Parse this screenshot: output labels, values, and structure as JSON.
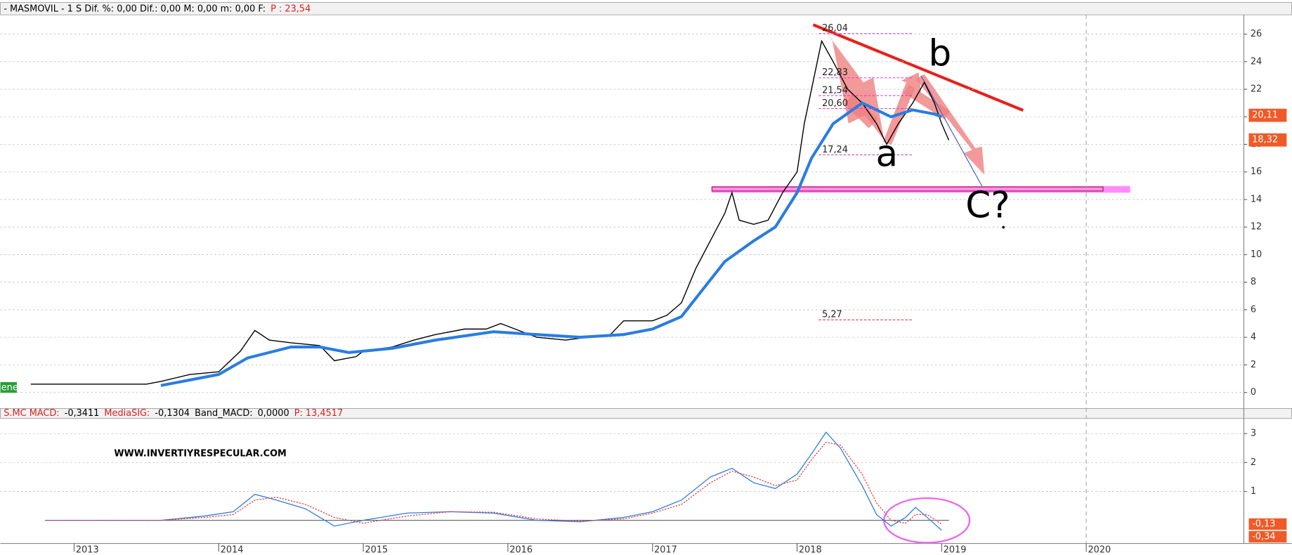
{
  "chart_data": [
    {
      "type": "candle-line",
      "header": [
        {
          "text": "- MASMOVIL -  1 S Dif. %: 0,00 Dif.: 0,00 M: 0,00 m: 0,00 F:",
          "color": "#000000"
        },
        {
          "text": "P : 23,54",
          "color": "#e02020"
        }
      ],
      "side_label": "enes",
      "xlim": [
        2012.49,
        2021.09
      ],
      "xticks": [
        2013,
        2014,
        2015,
        2016,
        2017,
        2018,
        2019,
        2020
      ],
      "ylim": [
        -1.1,
        27.4
      ],
      "yticks": [
        0,
        2,
        4,
        6,
        8,
        10,
        12,
        14,
        16,
        18,
        20,
        22,
        24,
        26
      ],
      "grid": true,
      "series": [
        {
          "color": "#000000",
          "x": [
            2012.7,
            2013.0,
            2013.5,
            2013.6,
            2013.8,
            2014.0,
            2014.15,
            2014.25,
            2014.35,
            2014.5,
            2014.7,
            2014.8,
            2014.95,
            2015.0,
            2015.2,
            2015.35,
            2015.5,
            2015.7,
            2015.85,
            2015.95,
            2016.1,
            2016.2,
            2016.4,
            2016.55,
            2016.7,
            2016.8,
            2017.0,
            2017.1,
            2017.2,
            2017.3,
            2017.4,
            2017.5,
            2017.55,
            2017.6,
            2017.7,
            2017.8,
            2017.9,
            2018.0,
            2018.05,
            2018.1,
            2018.17,
            2018.25,
            2018.35,
            2018.45,
            2018.55,
            2018.62,
            2018.7,
            2018.8,
            2018.88,
            2018.95,
            2019.0,
            2019.05
          ],
          "values": [
            0.6,
            0.6,
            0.6,
            0.8,
            1.3,
            1.5,
            3.0,
            4.5,
            3.8,
            3.6,
            3.4,
            2.3,
            2.6,
            3.0,
            3.3,
            3.8,
            4.2,
            4.6,
            4.6,
            5.0,
            4.4,
            4.0,
            3.8,
            4.0,
            4.1,
            5.2,
            5.2,
            5.6,
            6.5,
            9.0,
            11.0,
            13.0,
            14.5,
            12.5,
            12.2,
            12.5,
            14.5,
            16.0,
            19.5,
            22.0,
            25.5,
            24.0,
            22.0,
            21.0,
            19.5,
            18.0,
            19.5,
            21.0,
            22.5,
            21.0,
            19.5,
            18.3
          ]
        },
        {
          "color": "#2a7de1",
          "x": [
            2013.6,
            2014.0,
            2014.2,
            2014.5,
            2014.7,
            2014.9,
            2015.2,
            2015.5,
            2015.9,
            2016.2,
            2016.5,
            2016.8,
            2017.0,
            2017.2,
            2017.35,
            2017.5,
            2017.7,
            2017.85,
            2018.0,
            2018.1,
            2018.25,
            2018.45,
            2018.65,
            2018.8,
            2018.95,
            2019.0
          ],
          "values": [
            0.5,
            1.3,
            2.5,
            3.3,
            3.3,
            2.9,
            3.2,
            3.8,
            4.4,
            4.2,
            4.0,
            4.2,
            4.6,
            5.5,
            7.5,
            9.5,
            11.0,
            12.0,
            14.5,
            17.0,
            19.5,
            21.0,
            20.0,
            20.5,
            20.2,
            20.0
          ]
        }
      ],
      "levels": [
        {
          "value": 26.04,
          "label": "26,04"
        },
        {
          "value": 22.83,
          "label": "22,83"
        },
        {
          "value": 21.54,
          "label": "21,54"
        },
        {
          "value": 20.6,
          "label": "20,60"
        },
        {
          "value": 17.24,
          "label": "17,24"
        },
        {
          "value": 5.27,
          "label": "5,27"
        }
      ],
      "price_tags": [
        {
          "value": 20.11,
          "label": "20,11"
        },
        {
          "value": 18.32,
          "label": "18,32"
        }
      ],
      "annotations": [
        "b",
        "a",
        "C?"
      ]
    },
    {
      "type": "macd",
      "header": [
        {
          "text": "S.MC MACD:",
          "color": "#e02020"
        },
        {
          "text": "-0,3411",
          "color": "#000000"
        },
        {
          "text": "MediaSIG:",
          "color": "#e02020"
        },
        {
          "text": "-0,1304",
          "color": "#000000"
        },
        {
          "text": "Band_MACD:",
          "color": "#000000"
        },
        {
          "text": "0,0000",
          "color": "#000000"
        },
        {
          "text": "P: 13,4517",
          "color": "#e02020"
        }
      ],
      "watermark": "WWW.INVERTIYRESPECULAR.COM",
      "ylim": [
        -0.8,
        3.53
      ],
      "yticks": [
        1,
        2,
        3
      ],
      "x": [
        2012.8,
        2013.6,
        2013.9,
        2014.1,
        2014.25,
        2014.4,
        2014.6,
        2014.8,
        2015.0,
        2015.3,
        2015.6,
        2015.9,
        2016.2,
        2016.5,
        2016.8,
        2017.0,
        2017.2,
        2017.4,
        2017.55,
        2017.7,
        2017.85,
        2018.0,
        2018.1,
        2018.2,
        2018.3,
        2018.45,
        2018.55,
        2018.65,
        2018.75,
        2018.82,
        2018.9,
        2019.0
      ],
      "series": [
        {
          "color": "#2a7de1",
          "values": [
            0,
            0,
            0.15,
            0.3,
            0.9,
            0.7,
            0.4,
            -0.2,
            0,
            0.25,
            0.3,
            0.25,
            0,
            -0.05,
            0.1,
            0.3,
            0.7,
            1.5,
            1.8,
            1.3,
            1.1,
            1.6,
            2.3,
            3.05,
            2.5,
            1.2,
            0.2,
            -0.2,
            0.1,
            0.45,
            0.1,
            -0.34
          ]
        },
        {
          "color": "#e84040",
          "dashed": true,
          "values": [
            0,
            0,
            0.1,
            0.2,
            0.7,
            0.8,
            0.55,
            0.1,
            -0.1,
            0.15,
            0.3,
            0.28,
            0.05,
            -0.03,
            0.05,
            0.25,
            0.55,
            1.3,
            1.7,
            1.5,
            1.2,
            1.4,
            2.1,
            2.7,
            2.6,
            1.6,
            0.6,
            0.0,
            -0.1,
            0.2,
            0.2,
            -0.13
          ]
        }
      ],
      "price_tags": [
        {
          "value": -0.13,
          "label": "-0,13"
        },
        {
          "value": -0.34,
          "label": "-0,34"
        }
      ]
    }
  ]
}
